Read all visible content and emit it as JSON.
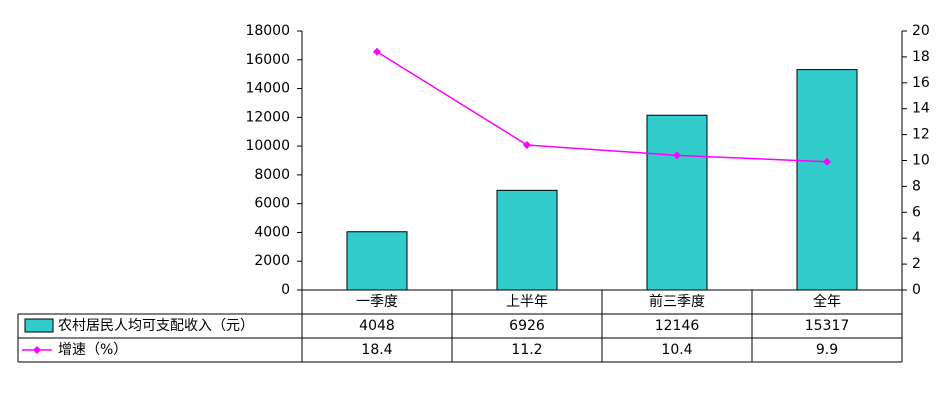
{
  "chart_data": {
    "type": "bar",
    "categories": [
      "一季度",
      "上半年",
      "前三季度",
      "全年"
    ],
    "series": [
      {
        "name": "农村居民人均可支配收入（元）",
        "type": "bar",
        "axis": "left",
        "values": [
          4048,
          6926,
          12146,
          15317
        ],
        "value_labels": [
          "4048",
          "6926",
          "12146",
          "15317"
        ],
        "color": "#33CCCC"
      },
      {
        "name": "增速（%）",
        "type": "line",
        "axis": "right",
        "values": [
          18.4,
          11.2,
          10.4,
          9.9
        ],
        "value_labels": [
          "18.4",
          "11.2",
          "10.4",
          "9.9"
        ],
        "color": "#FF00FF"
      }
    ],
    "y_left": {
      "lim": [
        0,
        18000
      ],
      "ticks": [
        "0",
        "2000",
        "4000",
        "6000",
        "8000",
        "10000",
        "12000",
        "14000",
        "16000",
        "18000"
      ]
    },
    "y_right": {
      "lim": [
        0,
        20
      ],
      "ticks": [
        "0",
        "2",
        "4",
        "6",
        "8",
        "10",
        "12",
        "14",
        "16",
        "18",
        "20"
      ]
    },
    "grid": false,
    "legend": "data-table"
  }
}
